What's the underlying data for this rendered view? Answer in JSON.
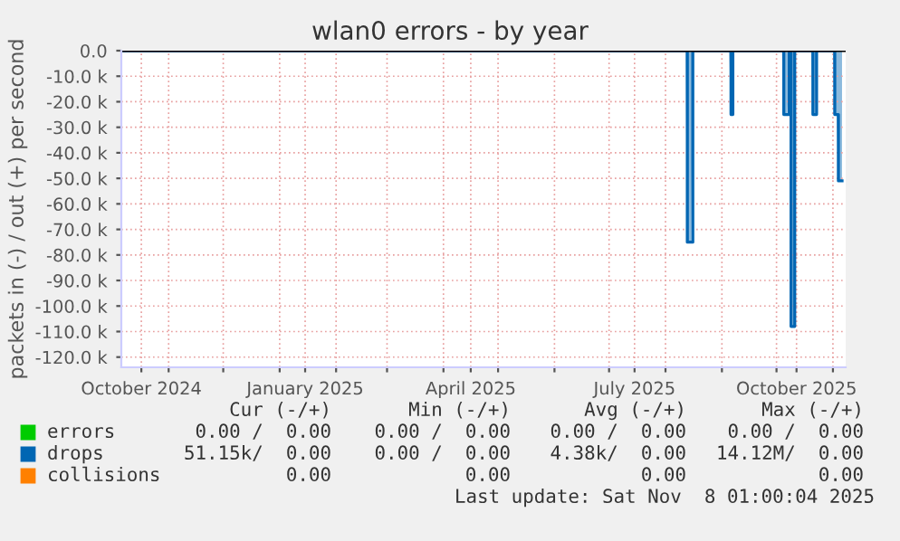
{
  "chart_data": {
    "type": "area",
    "title": "wlan0 errors - by year",
    "ylabel": "packets in (-) / out (+) per second",
    "xlim": [
      "2024-10-06",
      "2025-11-08"
    ],
    "xticks": [
      {
        "value": "2024-10-17",
        "label": "October 2024"
      },
      {
        "value": "2025-01-15",
        "label": "January 2025"
      },
      {
        "value": "2025-04-16",
        "label": "April 2025"
      },
      {
        "value": "2025-07-15",
        "label": "July 2025"
      },
      {
        "value": "2025-10-12",
        "label": "October 2025"
      },
      {
        "value": "2024-11-01",
        "label": null
      },
      {
        "value": "2024-12-01",
        "label": null
      },
      {
        "value": "2025-01-01",
        "label": null
      },
      {
        "value": "2025-02-01",
        "label": null
      },
      {
        "value": "2025-03-01",
        "label": null
      },
      {
        "value": "2025-04-01",
        "label": null
      },
      {
        "value": "2025-05-01",
        "label": null
      },
      {
        "value": "2025-06-01",
        "label": null
      },
      {
        "value": "2025-07-01",
        "label": null
      },
      {
        "value": "2025-08-01",
        "label": null
      },
      {
        "value": "2025-09-01",
        "label": null
      },
      {
        "value": "2025-10-01",
        "label": null
      },
      {
        "value": "2025-11-01",
        "label": null
      }
    ],
    "ylim": [
      -124000,
      0
    ],
    "yticks": [
      {
        "value": 0,
        "label": "0.0"
      },
      {
        "value": -10000,
        "label": "-10.0 k"
      },
      {
        "value": -20000,
        "label": "-20.0 k"
      },
      {
        "value": -30000,
        "label": "-30.0 k"
      },
      {
        "value": -40000,
        "label": "-40.0 k"
      },
      {
        "value": -50000,
        "label": "-50.0 k"
      },
      {
        "value": -60000,
        "label": "-60.0 k"
      },
      {
        "value": -70000,
        "label": "-70.0 k"
      },
      {
        "value": -80000,
        "label": "-80.0 k"
      },
      {
        "value": -90000,
        "label": "-90.0 k"
      },
      {
        "value": -100000,
        "label": "-100.0 k"
      },
      {
        "value": -110000,
        "label": "-110.0 k"
      },
      {
        "value": -120000,
        "label": "-120.0 k"
      }
    ],
    "grid": true,
    "legend": "bottom",
    "series": [
      {
        "name": "errors",
        "color": "#00cc00"
      },
      {
        "name": "drops",
        "color": "#0066b3",
        "x": [
          "2024-10-06",
          "2025-08-12",
          "2025-08-13",
          "2025-08-15",
          "2025-08-16",
          "2025-09-05",
          "2025-09-06",
          "2025-09-07",
          "2025-10-04",
          "2025-10-05",
          "2025-10-07",
          "2025-10-08",
          "2025-10-09",
          "2025-10-10",
          "2025-10-11",
          "2025-10-20",
          "2025-10-21",
          "2025-10-22",
          "2025-10-23",
          "2025-11-01",
          "2025-11-02",
          "2025-11-03",
          "2025-11-04",
          "2025-11-06"
        ],
        "values": [
          0,
          0,
          -75000,
          -75000,
          0,
          0,
          -25000,
          0,
          0,
          -25000,
          -25000,
          0,
          -108000,
          -108000,
          0,
          0,
          -25000,
          -25000,
          0,
          0,
          -25000,
          -25000,
          -51000,
          -51000
        ]
      },
      {
        "name": "collisions",
        "color": "#ff8000"
      }
    ],
    "annotations": [
      "Cur (-/+)",
      "Min (-/+)",
      "Avg (-/+)",
      "Max (-/+)",
      "0.00 /  0.00",
      "0.00 /  0.00",
      "0.00 /  0.00",
      "0.00 /  0.00",
      "51.15k/  0.00",
      "0.00 /  0.00",
      "4.38k/  0.00",
      "14.12M/  0.00",
      "0.00",
      "0.00",
      "0.00",
      "0.00",
      "Last update: Sat Nov  8 01:00:04 2025"
    ]
  }
}
